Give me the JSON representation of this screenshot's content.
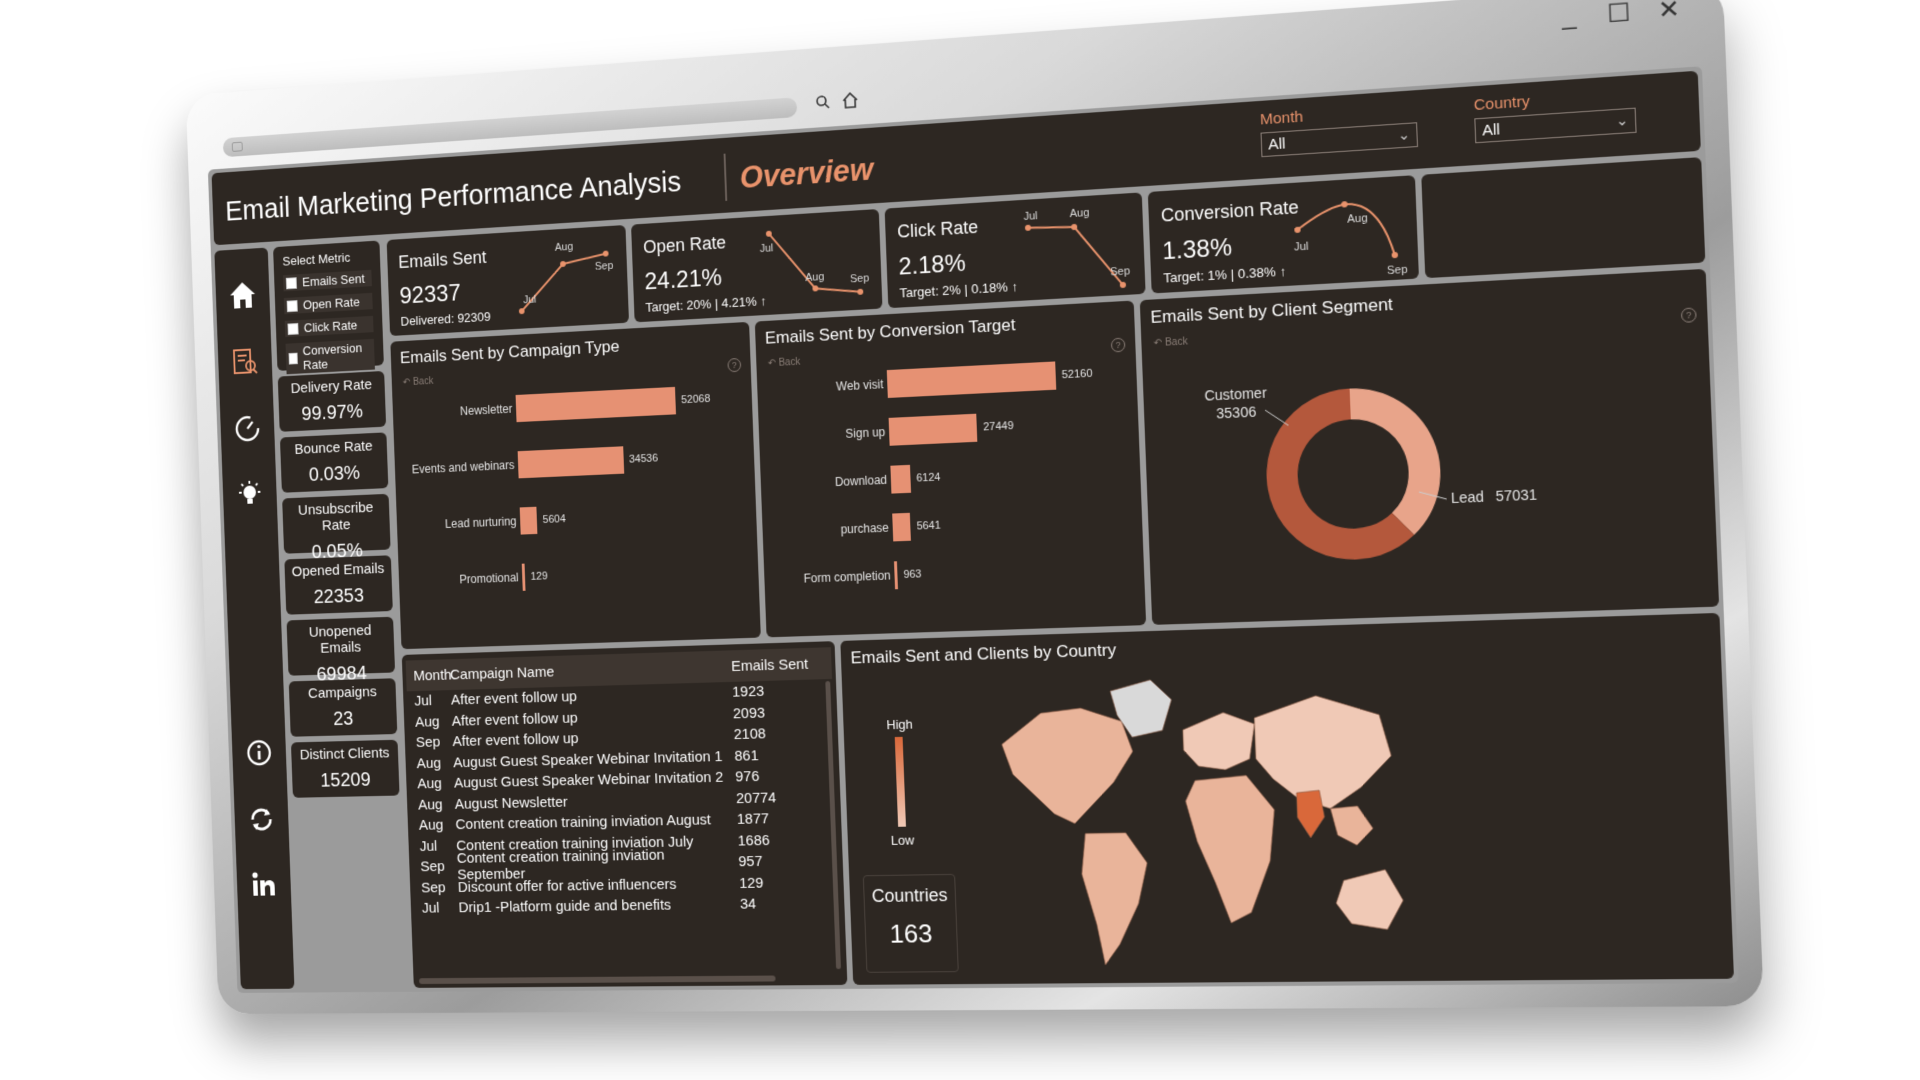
{
  "window": {
    "minimize_icon": "_",
    "maximize_icon": "☐",
    "close_icon": "✕"
  },
  "header": {
    "title": "Email Marketing Performance Analysis",
    "page": "Overview"
  },
  "filters": [
    {
      "label": "Month",
      "value": "All"
    },
    {
      "label": "Country",
      "value": "All"
    }
  ],
  "select_metric": {
    "title": "Select Metric",
    "options": [
      "Emails Sent",
      "Open Rate",
      "Click Rate",
      "Conversion Rate"
    ]
  },
  "kpis": [
    {
      "label": "Delivery Rate",
      "value": "99.97%"
    },
    {
      "label": "Bounce Rate",
      "value": "0.03%"
    },
    {
      "label": "Unsubscribe Rate",
      "value": "0.05%"
    },
    {
      "label": "Opened Emails",
      "value": "22353"
    },
    {
      "label": "Unopened Emails",
      "value": "69984"
    },
    {
      "label": "Campaigns",
      "value": "23"
    },
    {
      "label": "Distinct Clients",
      "value": "15209"
    }
  ],
  "metric_cards": [
    {
      "label": "Emails Sent",
      "value": "92337",
      "sub": "Delivered: 92309",
      "months": [
        "Jul",
        "Aug",
        "Sep"
      ]
    },
    {
      "label": "Open Rate",
      "value": "24.21%",
      "sub": "Target: 20% | 4.21% ↑",
      "months": [
        "Jul",
        "Aug",
        "Sep"
      ]
    },
    {
      "label": "Click Rate",
      "value": "2.18%",
      "sub": "Target: 2% | 0.18% ↑",
      "months": [
        "Jul",
        "Aug",
        "Sep"
      ]
    },
    {
      "label": "Conversion Rate",
      "value": "1.38%",
      "sub": "Target: 1% | 0.38% ↑",
      "months": [
        "Jul",
        "Aug",
        "Sep"
      ]
    }
  ],
  "campaign_type": {
    "title": "Emails Sent by Campaign Type",
    "back": "Back",
    "categories": [
      "Newsletter",
      "Events and webinars",
      "Lead nurturing",
      "Promotional"
    ],
    "values": [
      "52068",
      "34536",
      "5604",
      "129"
    ]
  },
  "conversion_target": {
    "title": "Emails Sent by Conversion Target",
    "back": "Back",
    "categories": [
      "Web visit",
      "Sign up",
      "Download",
      "purchase",
      "Form completion"
    ],
    "values": [
      "52160",
      "27449",
      "6124",
      "5641",
      "963"
    ]
  },
  "client_segment": {
    "title": "Emails Sent by Client Segment",
    "back": "Back",
    "slices": [
      {
        "label": "Customer",
        "value": "35306",
        "color": "#e8a48a"
      },
      {
        "label": "Lead",
        "value": "57031",
        "color": "#b4583c"
      }
    ]
  },
  "table": {
    "columns": [
      "Month",
      "Campaign Name",
      "Emails Sent"
    ],
    "rows": [
      [
        "Jul",
        "After event follow up",
        "1923"
      ],
      [
        "Aug",
        "After event follow up",
        "2093"
      ],
      [
        "Sep",
        "After event follow up",
        "2108"
      ],
      [
        "Aug",
        "August Guest Speaker Webinar Invitation 1",
        "861"
      ],
      [
        "Aug",
        "August Guest Speaker Webinar Invitation 2",
        "976"
      ],
      [
        "Aug",
        "August Newsletter",
        "20774"
      ],
      [
        "Aug",
        "Content creation training inviation August",
        "1877"
      ],
      [
        "Jul",
        "Content creation training inviation July",
        "1686"
      ],
      [
        "Sep",
        "Content creation training inviation September",
        "957"
      ],
      [
        "Sep",
        "Discount offer for active influencers",
        "129"
      ],
      [
        "Jul",
        "Drip1 -Platform guide and benefits",
        "34"
      ]
    ]
  },
  "map": {
    "title": "Emails Sent and Clients by Country",
    "legend_high": "High",
    "legend_low": "Low",
    "countries_label": "Countries",
    "countries_value": "163",
    "colors": {
      "low": "#f0c9b6",
      "mid": "#e9b49a",
      "high": "#d9683a",
      "none": "#d9d9d9"
    }
  },
  "chart_data": [
    {
      "type": "bar",
      "title": "Emails Sent by Campaign Type",
      "categories": [
        "Newsletter",
        "Events and webinars",
        "Lead nurturing",
        "Promotional"
      ],
      "values": [
        52068,
        34536,
        5604,
        129
      ]
    },
    {
      "type": "bar",
      "title": "Emails Sent by Conversion Target",
      "categories": [
        "Web visit",
        "Sign up",
        "Download",
        "purchase",
        "Form completion"
      ],
      "values": [
        52160,
        27449,
        6124,
        5641,
        963
      ]
    },
    {
      "type": "pie",
      "title": "Emails Sent by Client Segment",
      "categories": [
        "Customer",
        "Lead"
      ],
      "values": [
        35306,
        57031
      ]
    }
  ]
}
